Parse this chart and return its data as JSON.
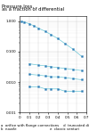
{
  "title_line1": "Pressure loss,",
  "title_line2": "as a fraction of differential",
  "xlabel": "m²",
  "xlim": [
    0.0,
    0.7
  ],
  "ymin": 0.001,
  "ymax": 1.5,
  "xticks": [
    0.0,
    0.1,
    0.2,
    0.3,
    0.4,
    0.5,
    0.6,
    0.7
  ],
  "xtick_labels": [
    "0",
    "0.1",
    "0.2",
    "0.3",
    "0.4",
    "0.5",
    "0.6",
    "0.7"
  ],
  "yticks": [
    0.001,
    0.002,
    0.003,
    0.004,
    0.005,
    0.006,
    0.007,
    0.008,
    0.009,
    0.01,
    0.02,
    0.03,
    0.04,
    0.05,
    0.1,
    0.2,
    0.3,
    0.4,
    0.5,
    0.6,
    0.7,
    0.8,
    0.9,
    1.0
  ],
  "ytick_labels_show": [
    0.001,
    0.01,
    0.1,
    1.0
  ],
  "ytick_labels_map": {
    "0.001": "0.001",
    "0.010": "0.010",
    "0.100": "0.100",
    "1.000": "1.000"
  },
  "series_orifice": {
    "x": [
      0.02,
      0.05,
      0.1,
      0.15,
      0.2,
      0.27,
      0.33,
      0.4,
      0.48,
      0.56,
      0.65
    ],
    "y": [
      0.98,
      0.93,
      0.82,
      0.7,
      0.58,
      0.46,
      0.36,
      0.27,
      0.18,
      0.12,
      0.07
    ]
  },
  "series_nozzle": {
    "x": [
      0.1,
      0.2,
      0.27,
      0.33,
      0.4,
      0.48,
      0.56,
      0.65
    ],
    "y": [
      0.04,
      0.036,
      0.034,
      0.032,
      0.03,
      0.028,
      0.026,
      0.024
    ]
  },
  "series_truncated": {
    "x": [
      0.1,
      0.2,
      0.27,
      0.33,
      0.4,
      0.48,
      0.56,
      0.65
    ],
    "y": [
      0.018,
      0.017,
      0.016,
      0.015,
      0.015,
      0.014,
      0.013,
      0.012
    ]
  },
  "series_venturi": {
    "x": [
      0.1,
      0.2,
      0.27,
      0.33,
      0.4,
      0.48,
      0.56,
      0.65
    ],
    "y": [
      0.007,
      0.007,
      0.006,
      0.006,
      0.006,
      0.005,
      0.005,
      0.005
    ]
  },
  "line_color": "#6cc8d8",
  "marker_color": "#2a7ab5",
  "bg_color": "#ffffff",
  "grid_color": "#bbbbbb",
  "title_fontsize": 3.8,
  "tick_fontsize": 3.0,
  "legend_fontsize": 2.8,
  "legend_lines": [
    "a  orifice with flange connections    d  truncated divergent nozzle",
    "b  nozzle                              e  classic venturi"
  ]
}
